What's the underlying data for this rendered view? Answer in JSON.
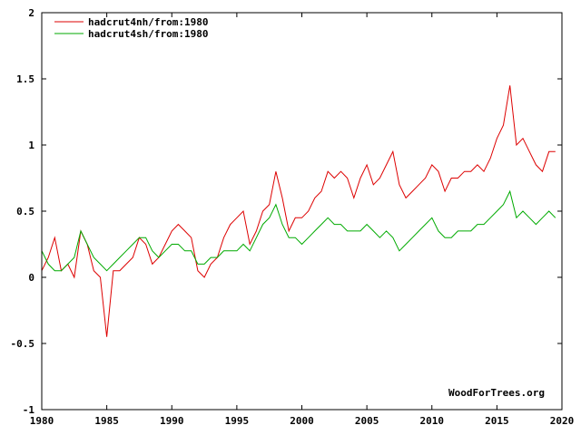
{
  "chart_data": {
    "type": "line",
    "title": "",
    "xlabel": "",
    "ylabel": "",
    "xlim": [
      1980,
      2020
    ],
    "ylim": [
      -1,
      2
    ],
    "grid": false,
    "legend_position": "top-left",
    "x_ticks": [
      1980,
      1985,
      1990,
      1995,
      2000,
      2005,
      2010,
      2015,
      2020
    ],
    "x_tick_labels": [
      "1980",
      "1985",
      "1990",
      "1995",
      "2000",
      "2005",
      "2010",
      "2015",
      "2020"
    ],
    "y_ticks": [
      -1,
      -0.5,
      0,
      0.5,
      1,
      1.5,
      2
    ],
    "y_tick_labels": [
      "-1",
      "-0.5",
      "0",
      "0.5",
      "1",
      "1.5",
      "2"
    ],
    "watermark": "WoodForTrees.org",
    "series": [
      {
        "name": "hadcrut4nh/from:1980",
        "color": "#dd0000",
        "x": [
          1980.0,
          1980.5,
          1981.0,
          1981.5,
          1982.0,
          1982.5,
          1983.0,
          1983.5,
          1984.0,
          1984.5,
          1985.0,
          1985.5,
          1986.0,
          1986.5,
          1987.0,
          1987.5,
          1988.0,
          1988.5,
          1989.0,
          1989.5,
          1990.0,
          1990.5,
          1991.0,
          1991.5,
          1992.0,
          1992.5,
          1993.0,
          1993.5,
          1994.0,
          1994.5,
          1995.0,
          1995.5,
          1996.0,
          1996.5,
          1997.0,
          1997.5,
          1998.0,
          1998.5,
          1999.0,
          1999.5,
          2000.0,
          2000.5,
          2001.0,
          2001.5,
          2002.0,
          2002.5,
          2003.0,
          2003.5,
          2004.0,
          2004.5,
          2005.0,
          2005.5,
          2006.0,
          2006.5,
          2007.0,
          2007.5,
          2008.0,
          2008.5,
          2009.0,
          2009.5,
          2010.0,
          2010.5,
          2011.0,
          2011.5,
          2012.0,
          2012.5,
          2013.0,
          2013.5,
          2014.0,
          2014.5,
          2015.0,
          2015.5,
          2016.0,
          2016.5,
          2017.0,
          2017.5,
          2018.0,
          2018.5,
          2019.0,
          2019.5
        ],
        "values": [
          0.05,
          0.15,
          0.3,
          0.05,
          0.1,
          0.0,
          0.35,
          0.25,
          0.05,
          0.0,
          -0.45,
          0.05,
          0.05,
          0.1,
          0.15,
          0.3,
          0.25,
          0.1,
          0.15,
          0.25,
          0.35,
          0.4,
          0.35,
          0.3,
          0.05,
          0.0,
          0.1,
          0.15,
          0.3,
          0.4,
          0.45,
          0.5,
          0.25,
          0.35,
          0.5,
          0.55,
          0.8,
          0.6,
          0.35,
          0.45,
          0.45,
          0.5,
          0.6,
          0.65,
          0.8,
          0.75,
          0.8,
          0.75,
          0.6,
          0.75,
          0.85,
          0.7,
          0.75,
          0.85,
          0.95,
          0.7,
          0.6,
          0.65,
          0.7,
          0.75,
          0.85,
          0.8,
          0.65,
          0.75,
          0.75,
          0.8,
          0.8,
          0.85,
          0.8,
          0.9,
          1.05,
          1.15,
          1.45,
          1.0,
          1.05,
          0.95,
          0.85,
          0.8,
          0.95,
          0.95
        ]
      },
      {
        "name": "hadcrut4sh/from:1980",
        "color": "#00aa00",
        "x": [
          1980.0,
          1980.5,
          1981.0,
          1981.5,
          1982.0,
          1982.5,
          1983.0,
          1983.5,
          1984.0,
          1984.5,
          1985.0,
          1985.5,
          1986.0,
          1986.5,
          1987.0,
          1987.5,
          1988.0,
          1988.5,
          1989.0,
          1989.5,
          1990.0,
          1990.5,
          1991.0,
          1991.5,
          1992.0,
          1992.5,
          1993.0,
          1993.5,
          1994.0,
          1994.5,
          1995.0,
          1995.5,
          1996.0,
          1996.5,
          1997.0,
          1997.5,
          1998.0,
          1998.5,
          1999.0,
          1999.5,
          2000.0,
          2000.5,
          2001.0,
          2001.5,
          2002.0,
          2002.5,
          2003.0,
          2003.5,
          2004.0,
          2004.5,
          2005.0,
          2005.5,
          2006.0,
          2006.5,
          2007.0,
          2007.5,
          2008.0,
          2008.5,
          2009.0,
          2009.5,
          2010.0,
          2010.5,
          2011.0,
          2011.5,
          2012.0,
          2012.5,
          2013.0,
          2013.5,
          2014.0,
          2014.5,
          2015.0,
          2015.5,
          2016.0,
          2016.5,
          2017.0,
          2017.5,
          2018.0,
          2018.5,
          2019.0,
          2019.5
        ],
        "values": [
          0.2,
          0.1,
          0.05,
          0.05,
          0.1,
          0.15,
          0.35,
          0.25,
          0.15,
          0.1,
          0.05,
          0.1,
          0.15,
          0.2,
          0.25,
          0.3,
          0.3,
          0.2,
          0.15,
          0.2,
          0.25,
          0.25,
          0.2,
          0.2,
          0.1,
          0.1,
          0.15,
          0.15,
          0.2,
          0.2,
          0.2,
          0.25,
          0.2,
          0.3,
          0.4,
          0.45,
          0.55,
          0.4,
          0.3,
          0.3,
          0.25,
          0.3,
          0.35,
          0.4,
          0.45,
          0.4,
          0.4,
          0.35,
          0.35,
          0.35,
          0.4,
          0.35,
          0.3,
          0.35,
          0.3,
          0.2,
          0.25,
          0.3,
          0.35,
          0.4,
          0.45,
          0.35,
          0.3,
          0.3,
          0.35,
          0.35,
          0.35,
          0.4,
          0.4,
          0.45,
          0.5,
          0.55,
          0.65,
          0.45,
          0.5,
          0.45,
          0.4,
          0.45,
          0.5,
          0.45
        ]
      }
    ]
  }
}
